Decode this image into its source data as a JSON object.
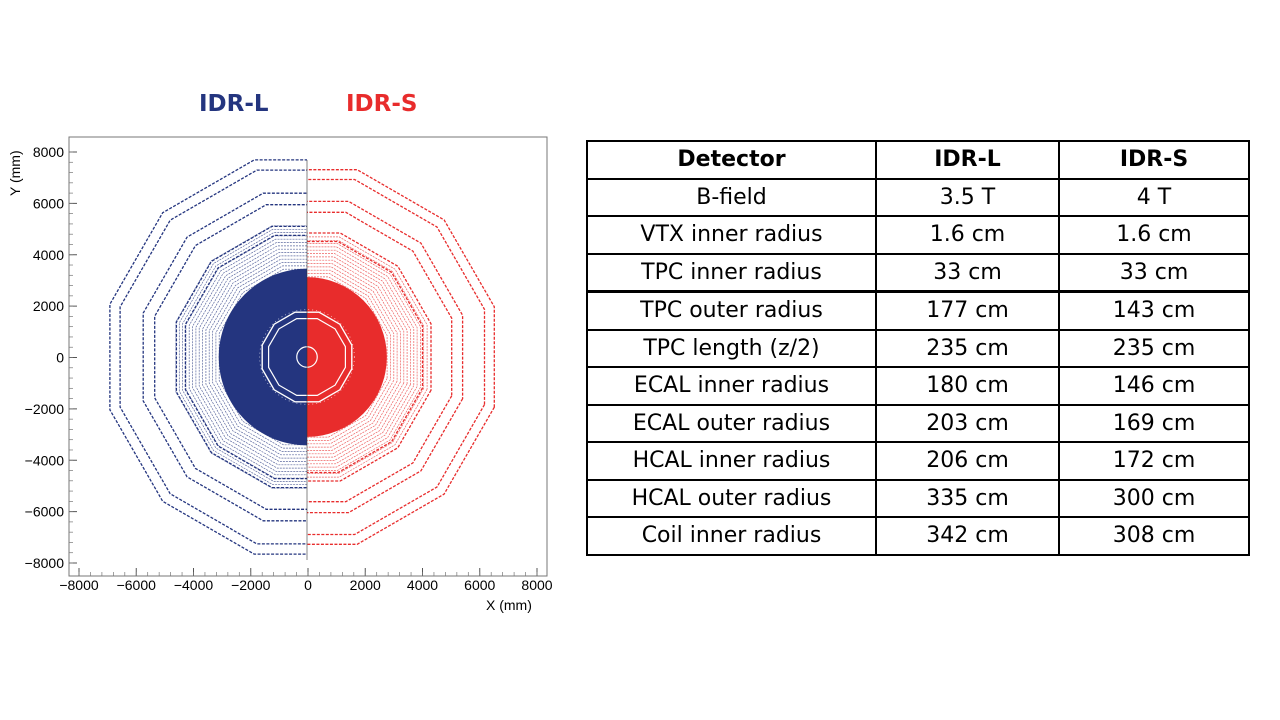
{
  "labels": {
    "left": "IDR-L",
    "right": "IDR-S"
  },
  "colors": {
    "left": "#24357f",
    "right": "#e82c2c"
  },
  "plot": {
    "y_axis_title": "Y (mm)",
    "x_axis_title": "X (mm)",
    "x_ticks": [
      "−8000",
      "−6000",
      "−4000",
      "−2000",
      "0",
      "2000",
      "4000",
      "6000",
      "8000"
    ],
    "y_ticks": [
      "8000",
      "6000",
      "4000",
      "2000",
      "0",
      "−2000",
      "−4000",
      "−6000",
      "−8000"
    ]
  },
  "table": {
    "headers": [
      "Detector",
      "IDR-L",
      "IDR-S"
    ],
    "rows": [
      [
        "B-field",
        "3.5 T",
        "4 T"
      ],
      [
        "VTX inner radius",
        "1.6 cm",
        "1.6 cm"
      ],
      [
        "TPC inner radius",
        "33 cm",
        "33 cm"
      ],
      [
        "TPC outer radius",
        "177 cm",
        "143 cm"
      ],
      [
        "TPC length (z/2)",
        "235 cm",
        "235 cm"
      ],
      [
        "ECAL inner radius",
        "180 cm",
        "146 cm"
      ],
      [
        "ECAL outer radius",
        "203 cm",
        "169 cm"
      ],
      [
        "HCAL inner radius",
        "206 cm",
        "172 cm"
      ],
      [
        "HCAL outer radius",
        "335 cm",
        "300 cm"
      ],
      [
        "Coil inner radius",
        "342 cm",
        "308 cm"
      ]
    ]
  }
}
